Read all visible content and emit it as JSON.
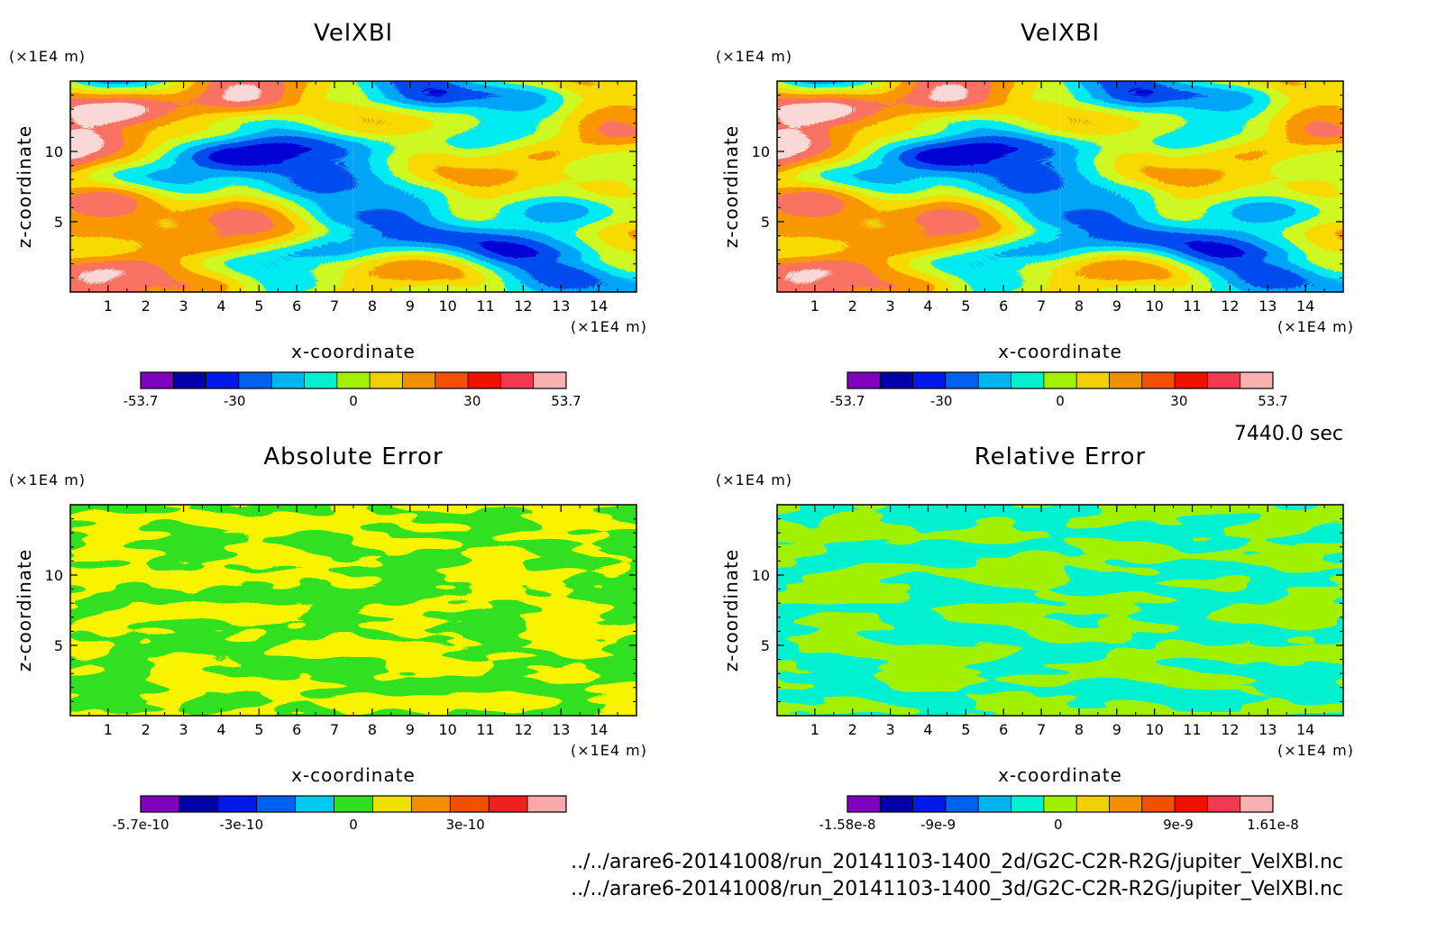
{
  "figure": {
    "time_label": "7440.0 sec",
    "files": [
      "../../arare6-20141008/run_20141103-1400_2d/G2C-C2R-R2G/jupiter_VelXBl.nc",
      "../../arare6-20141008/run_20141103-1400_3d/G2C-C2R-R2G/jupiter_VelXBl.nc"
    ]
  },
  "chart_data": [
    {
      "type": "heatmap",
      "title": "VelXBl",
      "xlabel": "x-coordinate",
      "ylabel": "z-coordinate",
      "x_unit": "(×1E4 m)",
      "y_unit": "(×1E4 m)",
      "xlim": [
        0,
        15
      ],
      "ylim": [
        0,
        15
      ],
      "x_ticks": [
        "1",
        "2",
        "3",
        "4",
        "5",
        "6",
        "7",
        "8",
        "9",
        "10",
        "11",
        "12",
        "13",
        "14"
      ],
      "y_ticks": [
        "5",
        "10"
      ],
      "field": "velocity",
      "colorbar": {
        "range": [
          -53.7,
          53.7
        ],
        "labels": [
          "-53.7",
          "-30",
          "0",
          "30",
          "53.7"
        ],
        "colors": [
          "#7f00bf",
          "#0000a8",
          "#0018e8",
          "#0060f0",
          "#00b4f0",
          "#00f0d0",
          "#a0f000",
          "#f0d000",
          "#f09000",
          "#f05000",
          "#f01000",
          "#f03850",
          "#f8b0b0"
        ]
      }
    },
    {
      "type": "heatmap",
      "title": "VelXBl",
      "xlabel": "x-coordinate",
      "ylabel": "z-coordinate",
      "x_unit": "(×1E4 m)",
      "y_unit": "(×1E4 m)",
      "xlim": [
        0,
        15
      ],
      "ylim": [
        0,
        15
      ],
      "x_ticks": [
        "1",
        "2",
        "3",
        "4",
        "5",
        "6",
        "7",
        "8",
        "9",
        "10",
        "11",
        "12",
        "13",
        "14"
      ],
      "y_ticks": [
        "5",
        "10"
      ],
      "field": "velocity",
      "colorbar": {
        "range": [
          -53.7,
          53.7
        ],
        "labels": [
          "-53.7",
          "-30",
          "0",
          "30",
          "53.7"
        ],
        "colors": [
          "#7f00bf",
          "#0000a8",
          "#0018e8",
          "#0060f0",
          "#00b4f0",
          "#00f0d0",
          "#a0f000",
          "#f0d000",
          "#f09000",
          "#f05000",
          "#f01000",
          "#f03850",
          "#f8b0b0"
        ]
      }
    },
    {
      "type": "heatmap",
      "title": "Absolute Error",
      "xlabel": "x-coordinate",
      "ylabel": "z-coordinate",
      "x_unit": "(×1E4 m)",
      "y_unit": "(×1E4 m)",
      "xlim": [
        0,
        15
      ],
      "ylim": [
        0,
        15
      ],
      "x_ticks": [
        "1",
        "2",
        "3",
        "4",
        "5",
        "6",
        "7",
        "8",
        "9",
        "10",
        "11",
        "12",
        "13",
        "14"
      ],
      "y_ticks": [
        "5",
        "10"
      ],
      "field": "abs_error",
      "colorbar": {
        "range": [
          -5.7e-10,
          5.7e-10
        ],
        "labels": [
          "-5.7e-10",
          "-3e-10",
          "0",
          "3e-10"
        ],
        "colors": [
          "#7f00bf",
          "#0000a8",
          "#0018e8",
          "#0060f0",
          "#00c8f0",
          "#30e020",
          "#f0e000",
          "#f09000",
          "#f05000",
          "#f02020",
          "#f8a8a8"
        ]
      }
    },
    {
      "type": "heatmap",
      "title": "Relative Error",
      "xlabel": "x-coordinate",
      "ylabel": "z-coordinate",
      "x_unit": "(×1E4 m)",
      "y_unit": "(×1E4 m)",
      "xlim": [
        0,
        15
      ],
      "ylim": [
        0,
        15
      ],
      "x_ticks": [
        "1",
        "2",
        "3",
        "4",
        "5",
        "6",
        "7",
        "8",
        "9",
        "10",
        "11",
        "12",
        "13",
        "14"
      ],
      "y_ticks": [
        "5",
        "10"
      ],
      "field": "rel_error",
      "colorbar": {
        "range": [
          -1.58e-08,
          1.61e-08
        ],
        "labels": [
          "-1.58e-8",
          "-9e-9",
          "0",
          "9e-9",
          "1.61e-8"
        ],
        "colors": [
          "#7f00bf",
          "#0000a8",
          "#0018e8",
          "#0060f0",
          "#00b4f0",
          "#00f0d0",
          "#a0f000",
          "#f0d000",
          "#f09000",
          "#f05000",
          "#f01000",
          "#f03850",
          "#f8b0b0"
        ]
      }
    }
  ]
}
